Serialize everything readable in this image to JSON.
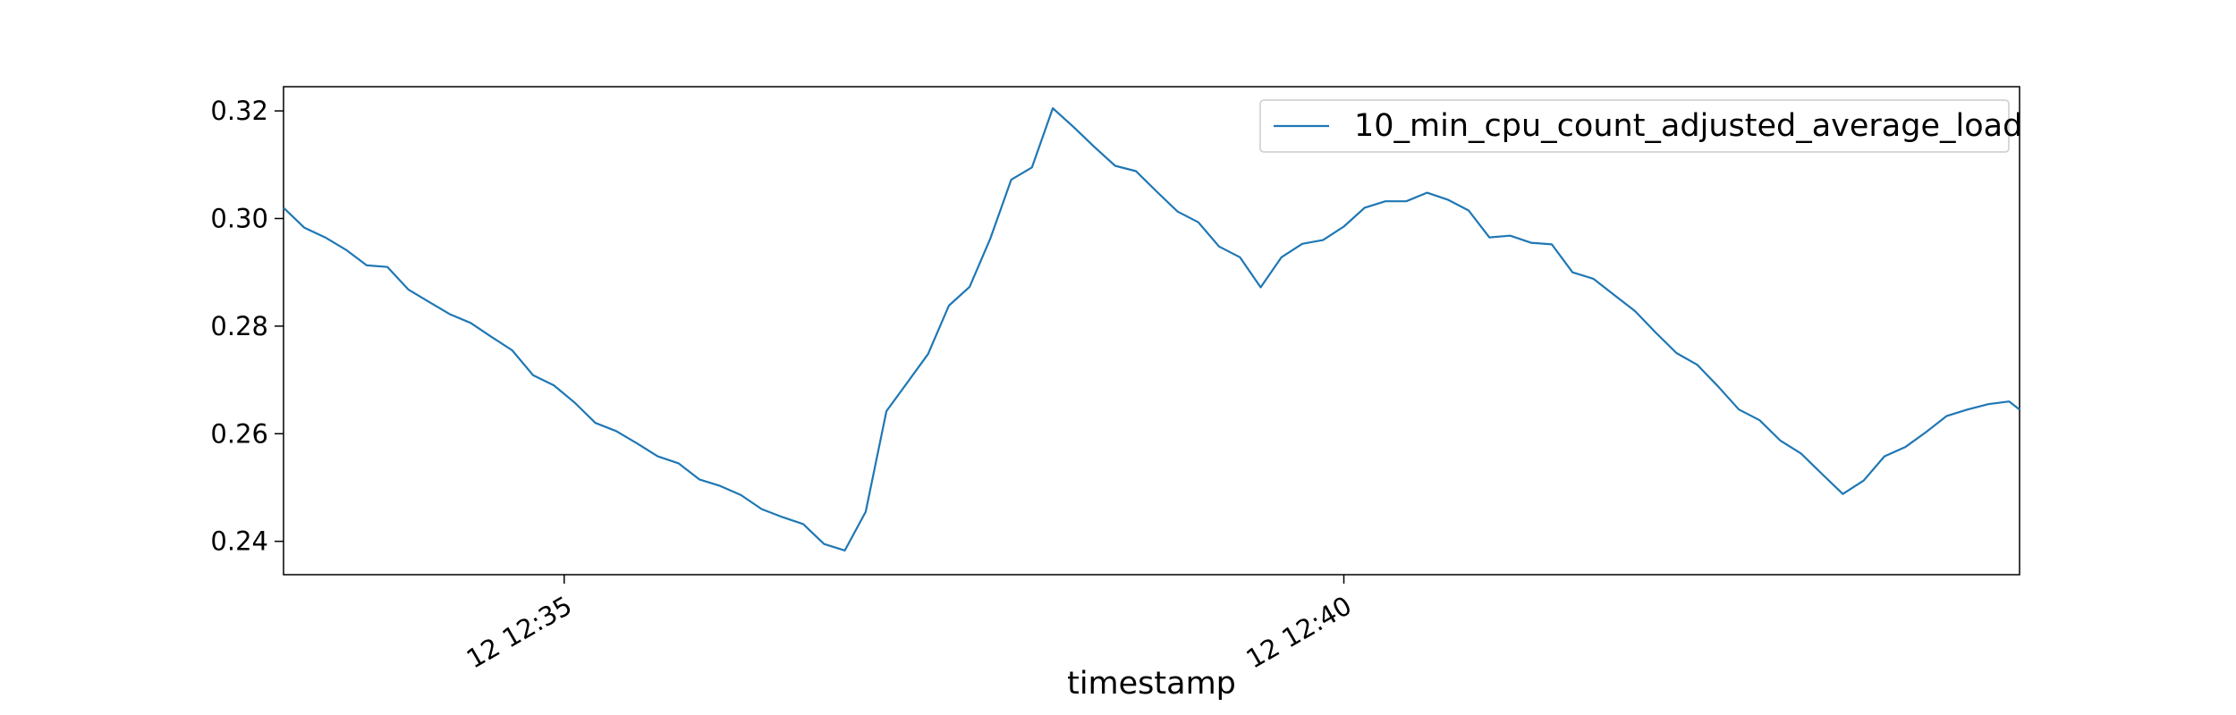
{
  "chart_data": {
    "type": "line",
    "title": "",
    "xlabel": "timestamp",
    "ylabel": "",
    "x_range": [
      "12:33:12",
      "12:44:20"
    ],
    "ylim": [
      0.2338,
      0.3245
    ],
    "x_ticks": [
      {
        "time": "12:35:00",
        "label": "12 12:35"
      },
      {
        "time": "12:40:00",
        "label": "12 12:40"
      }
    ],
    "y_ticks": [
      {
        "value": 0.24,
        "label": "0.24"
      },
      {
        "value": 0.26,
        "label": "0.26"
      },
      {
        "value": 0.28,
        "label": "0.28"
      },
      {
        "value": 0.3,
        "label": "0.30"
      },
      {
        "value": 0.32,
        "label": "0.32"
      }
    ],
    "grid": false,
    "legend_position": "top-right",
    "series": [
      {
        "name": "10_min_cpu_count_adjusted_average_load",
        "color": "#1f77b4",
        "x": [
          "12:33:12",
          "12:33:20",
          "12:33:28",
          "12:33:36",
          "12:33:44",
          "12:33:52",
          "12:34:00",
          "12:34:08",
          "12:34:16",
          "12:34:24",
          "12:34:32",
          "12:34:40",
          "12:34:48",
          "12:34:56",
          "12:35:04",
          "12:35:12",
          "12:35:20",
          "12:35:28",
          "12:35:36",
          "12:35:44",
          "12:35:52",
          "12:36:00",
          "12:36:08",
          "12:36:16",
          "12:36:24",
          "12:36:32",
          "12:36:40",
          "12:36:48",
          "12:36:56",
          "12:37:04",
          "12:37:12",
          "12:37:20",
          "12:37:28",
          "12:37:36",
          "12:37:44",
          "12:37:52",
          "12:38:00",
          "12:38:08",
          "12:38:16",
          "12:38:24",
          "12:38:32",
          "12:38:40",
          "12:38:48",
          "12:38:56",
          "12:39:04",
          "12:39:12",
          "12:39:20",
          "12:39:28",
          "12:39:36",
          "12:39:44",
          "12:39:52",
          "12:40:00",
          "12:40:08",
          "12:40:16",
          "12:40:24",
          "12:40:32",
          "12:40:40",
          "12:40:48",
          "12:40:56",
          "12:41:04",
          "12:41:12",
          "12:41:20",
          "12:41:28",
          "12:41:36",
          "12:41:44",
          "12:41:52",
          "12:42:00",
          "12:42:08",
          "12:42:16",
          "12:42:24",
          "12:42:32",
          "12:42:40",
          "12:42:48",
          "12:42:56",
          "12:43:04",
          "12:43:12",
          "12:43:20",
          "12:43:28",
          "12:43:36",
          "12:43:44",
          "12:43:52",
          "12:44:00",
          "12:44:08",
          "12:44:16",
          "12:44:20"
        ],
        "y": [
          0.302,
          0.2983,
          0.2965,
          0.2942,
          0.2913,
          0.291,
          0.2868,
          0.2845,
          0.2822,
          0.2806,
          0.278,
          0.2755,
          0.2709,
          0.269,
          0.2658,
          0.262,
          0.2605,
          0.2582,
          0.2558,
          0.2545,
          0.2515,
          0.2503,
          0.2486,
          0.246,
          0.2445,
          0.2432,
          0.2395,
          0.2383,
          0.2455,
          0.2642,
          0.2695,
          0.2748,
          0.2838,
          0.2873,
          0.2963,
          0.3072,
          0.3095,
          0.3205,
          0.317,
          0.3133,
          0.3098,
          0.3088,
          0.305,
          0.3013,
          0.2993,
          0.2948,
          0.2928,
          0.2872,
          0.2928,
          0.2953,
          0.296,
          0.2985,
          0.302,
          0.3032,
          0.3032,
          0.3048,
          0.3035,
          0.3015,
          0.2965,
          0.2968,
          0.2955,
          0.2952,
          0.29,
          0.2888,
          0.2858,
          0.2828,
          0.2788,
          0.275,
          0.2728,
          0.2688,
          0.2645,
          0.2625,
          0.2587,
          0.2563,
          0.2525,
          0.2488,
          0.2513,
          0.2558,
          0.2575,
          0.2603,
          0.2633,
          0.2645,
          0.2655,
          0.266,
          0.2645
        ]
      }
    ]
  }
}
